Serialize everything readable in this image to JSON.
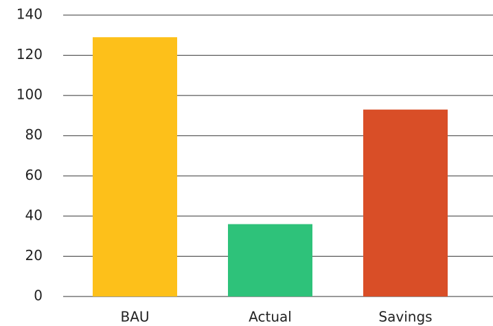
{
  "chart_data": {
    "type": "bar",
    "categories": [
      "BAU",
      "Actual",
      "Savings"
    ],
    "values": [
      129,
      36,
      93
    ],
    "colors": [
      "#fdc01a",
      "#2ec27a",
      "#d94e27"
    ],
    "ylim": [
      0,
      140
    ],
    "yticks": [
      0,
      20,
      40,
      60,
      80,
      100,
      120,
      140
    ],
    "grid": true
  }
}
